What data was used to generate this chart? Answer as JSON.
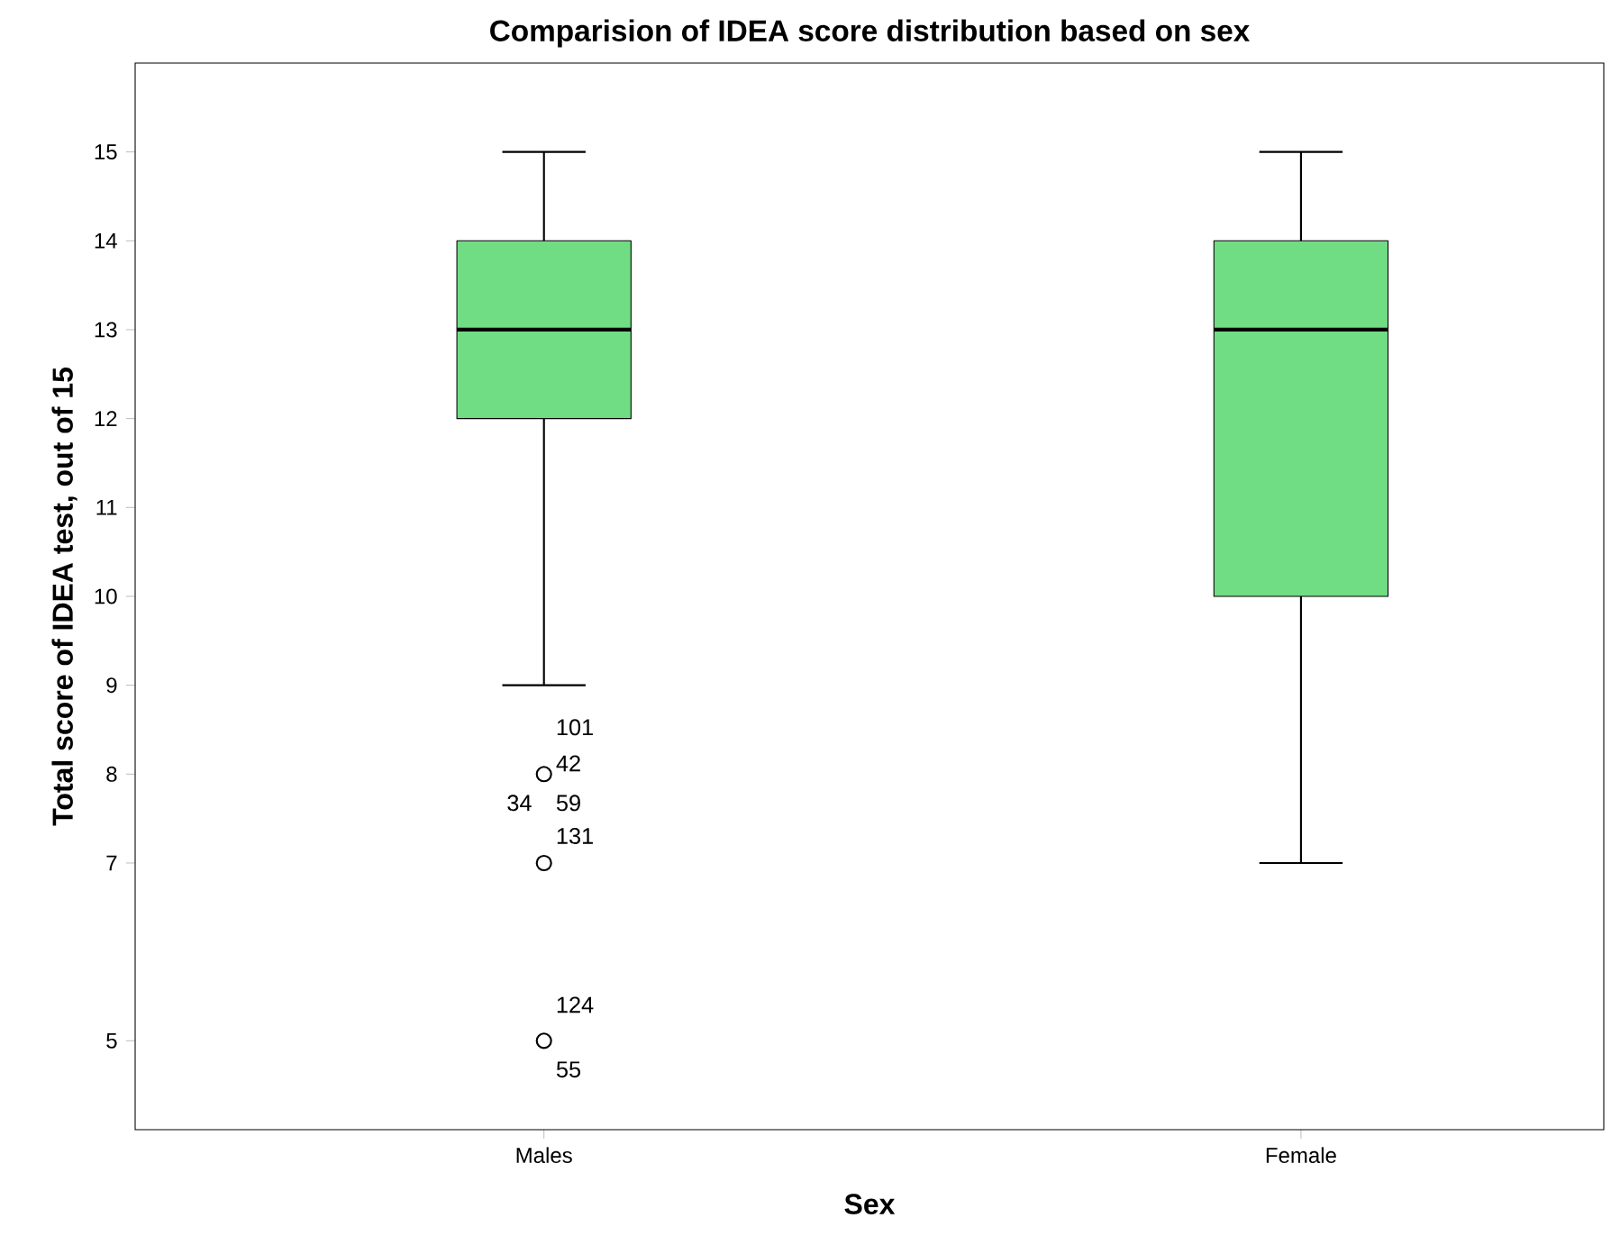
{
  "chart_data": {
    "type": "box",
    "title": "Comparision of IDEA score distribution based on sex",
    "xlabel": "Sex",
    "ylabel": "Total score of IDEA test, out of 15",
    "categories": [
      "Males",
      "Female"
    ],
    "boxes": [
      {
        "low": 9,
        "q1": 12,
        "median": 13,
        "q3": 14,
        "high": 15,
        "outliers": [
          8,
          7,
          5
        ]
      },
      {
        "low": 7,
        "q1": 10,
        "median": 13,
        "q3": 14,
        "high": 15
      }
    ],
    "color": "#70dc84",
    "ylim": [
      4,
      16
    ],
    "yticks": [
      5,
      7,
      8,
      9,
      10,
      11,
      12,
      13,
      14,
      15
    ],
    "grid": false,
    "annotations": [
      "101",
      "42",
      "34",
      "59",
      "131",
      "124",
      "55"
    ]
  }
}
